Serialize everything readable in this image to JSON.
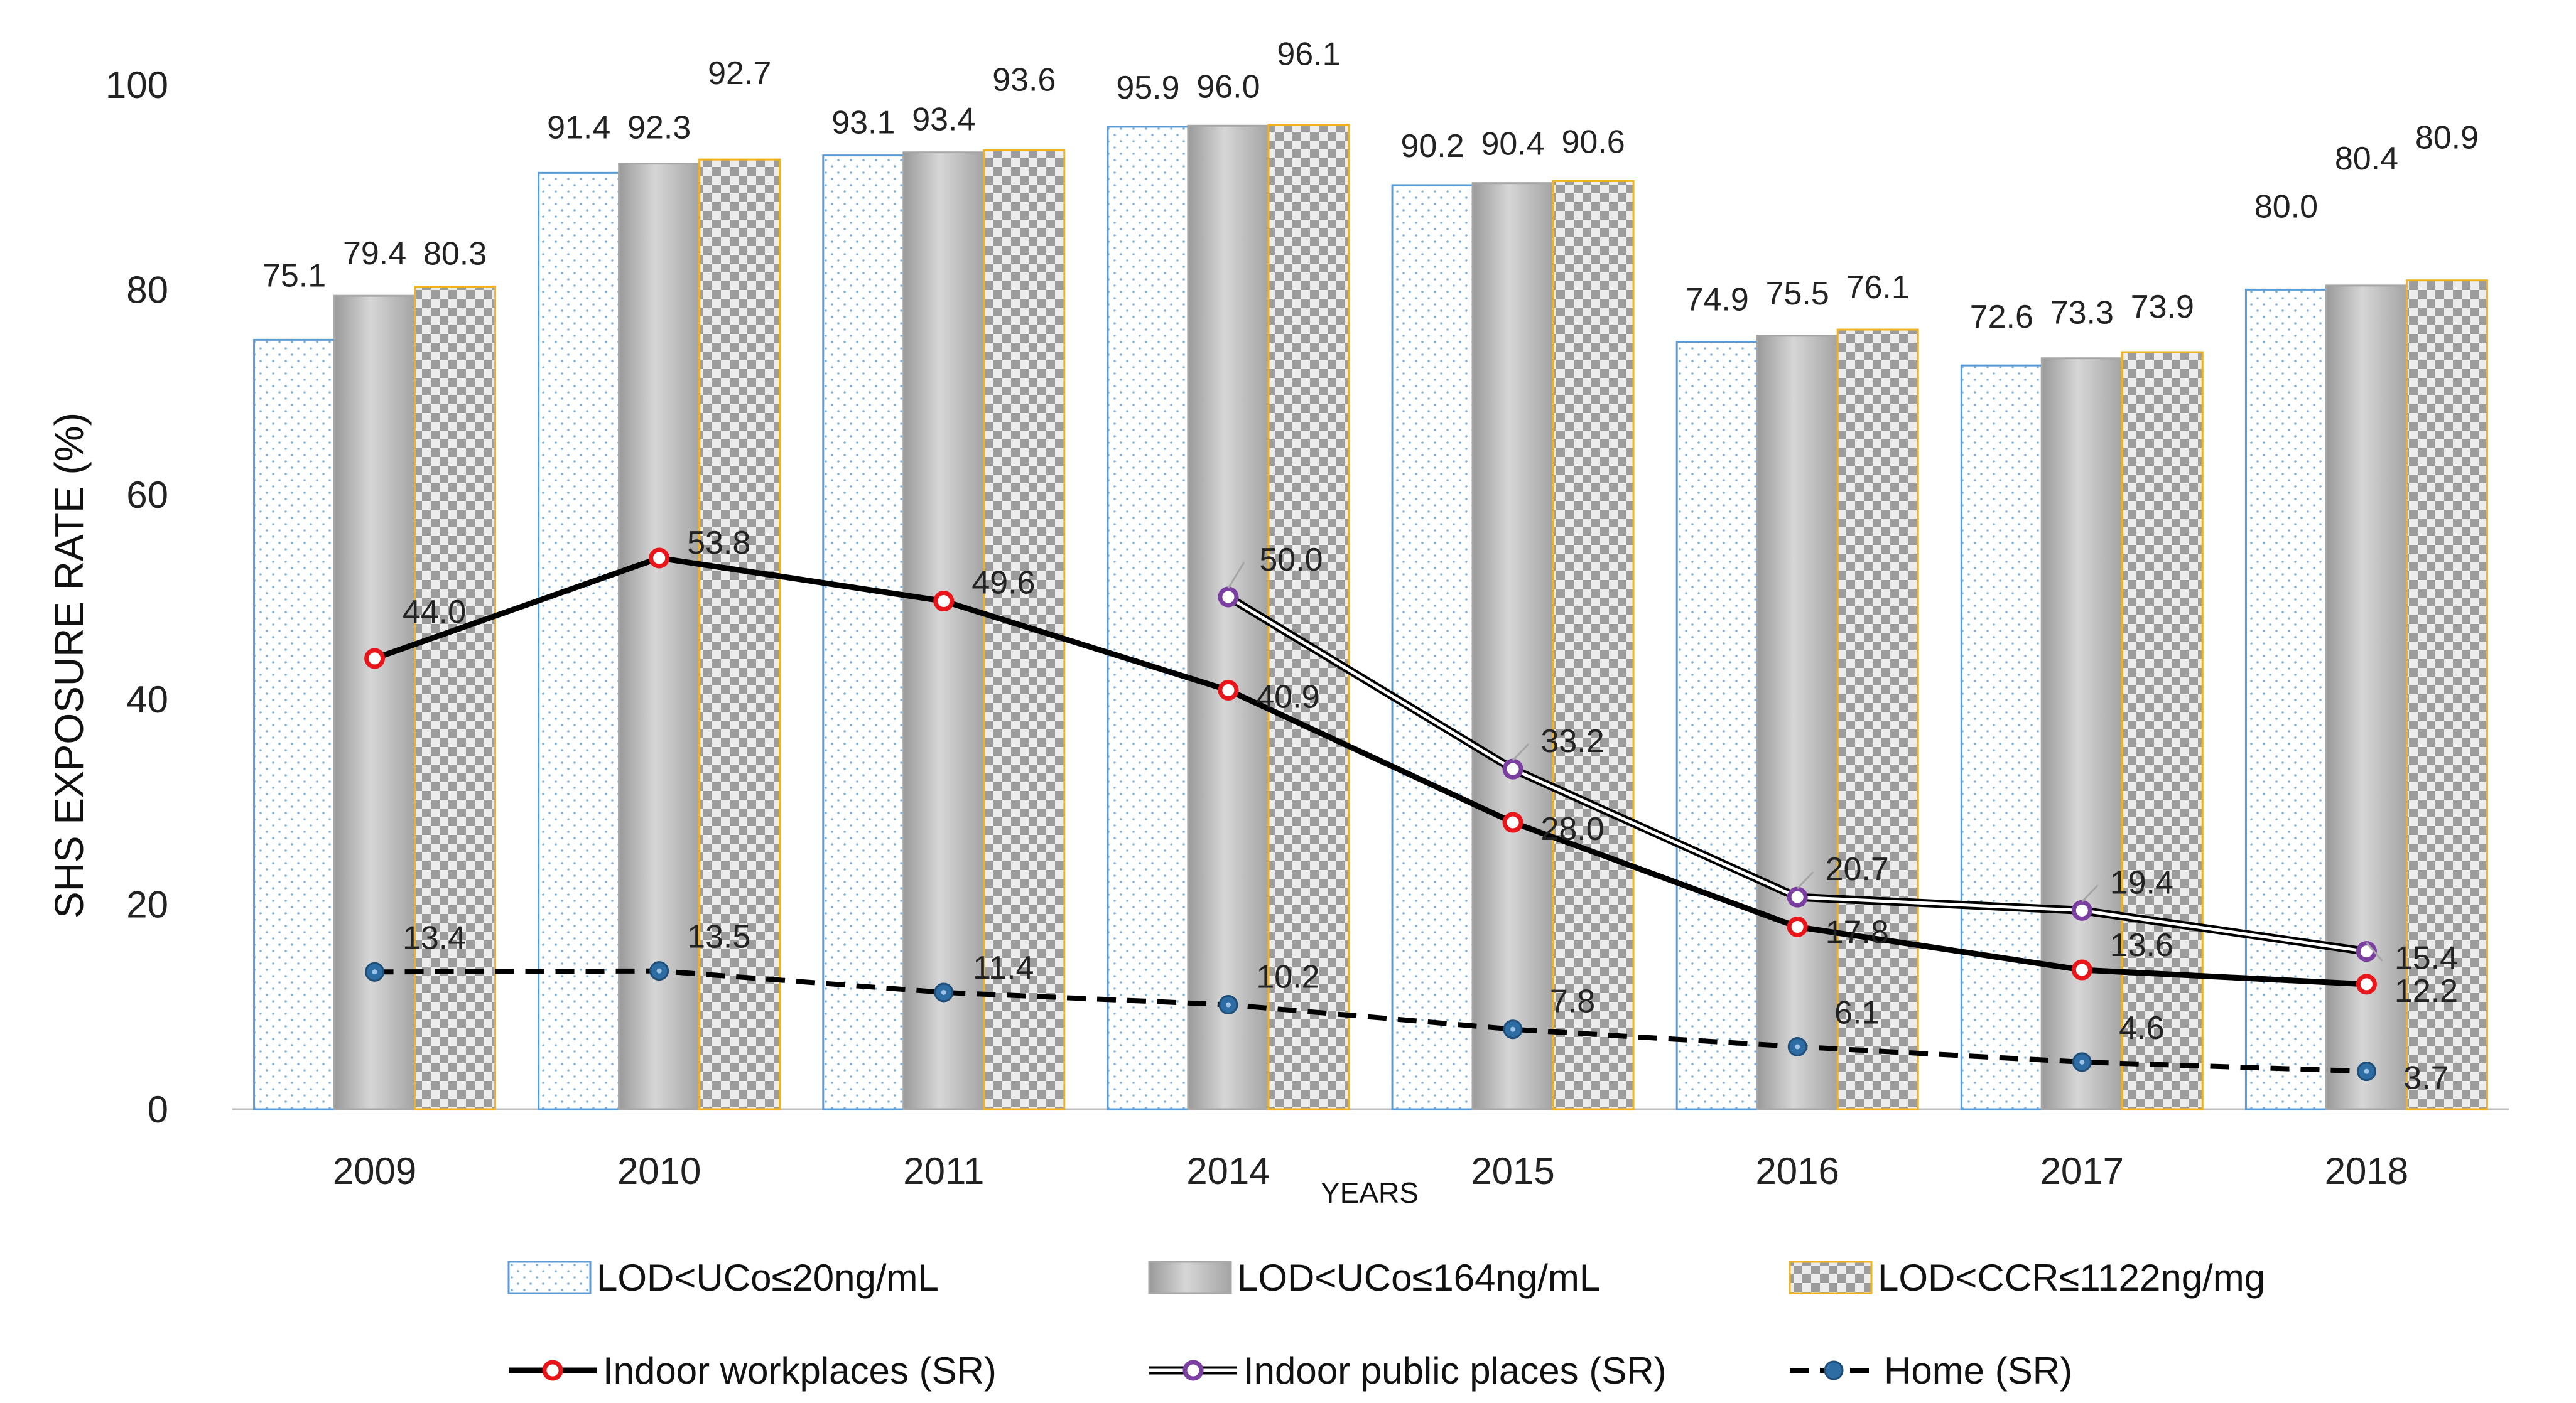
{
  "chart_data": {
    "type": "bar",
    "title": "",
    "xlabel": "YEARS",
    "ylabel": "SHS EXPOSURE RATE  (%)",
    "ylim": [
      0,
      100
    ],
    "yticks": [
      "0",
      "20",
      "40",
      "60",
      "80",
      "100"
    ],
    "categories": [
      "2009",
      "2010",
      "2011",
      "2014",
      "2015",
      "2016",
      "2017",
      "2018"
    ],
    "bar_series": [
      {
        "name": "LOD<UCo≤20ng/mL",
        "values": [
          75.1,
          91.4,
          93.1,
          95.9,
          90.2,
          74.9,
          72.6,
          80.0
        ],
        "labels": [
          "75.1",
          "91.4",
          "93.1",
          "95.9",
          "90.2",
          "74.9",
          "72.6",
          "80.0"
        ],
        "color": "#5b9bd5"
      },
      {
        "name": "LOD<UCo≤164ng/mL",
        "values": [
          79.4,
          92.3,
          93.4,
          96.0,
          90.4,
          75.5,
          73.3,
          80.4
        ],
        "labels": [
          "79.4",
          "92.3",
          "93.4",
          "96.0",
          "90.4",
          "75.5",
          "73.3",
          "80.4"
        ],
        "color": "#a6a6a6"
      },
      {
        "name": "LOD<CCR≤1122ng/mg",
        "values": [
          80.3,
          92.7,
          93.6,
          96.1,
          90.6,
          76.1,
          73.9,
          80.9
        ],
        "labels": [
          "80.3",
          "92.7",
          "93.6",
          "96.1",
          "90.6",
          "76.1",
          "73.9",
          "80.9"
        ],
        "color": "#f2b21b"
      }
    ],
    "line_series": [
      {
        "name": "Indoor workplaces (SR)",
        "values": [
          44.0,
          53.8,
          49.6,
          40.9,
          28.0,
          17.8,
          13.6,
          12.2
        ],
        "labels": [
          "44.0",
          "53.8",
          "49.6",
          "40.9",
          "28.0",
          "17.8",
          "13.6",
          "12.2"
        ],
        "color": "#e8161b"
      },
      {
        "name": "Indoor public places (SR)",
        "values": [
          null,
          null,
          null,
          50.0,
          33.2,
          20.7,
          19.4,
          15.4
        ],
        "labels": [
          null,
          null,
          null,
          "50.0",
          "33.2",
          "20.7",
          "19.4",
          "15.4"
        ],
        "color": "#7a3fa0"
      },
      {
        "name": "Home (SR)",
        "values": [
          13.4,
          13.5,
          11.4,
          10.2,
          7.8,
          6.1,
          4.6,
          3.7
        ],
        "labels": [
          "13.4",
          "13.5",
          "11.4",
          "10.2",
          "7.8",
          "6.1",
          "4.6",
          "3.7"
        ],
        "color": "#2e6da4"
      }
    ],
    "legend_position": "bottom"
  }
}
